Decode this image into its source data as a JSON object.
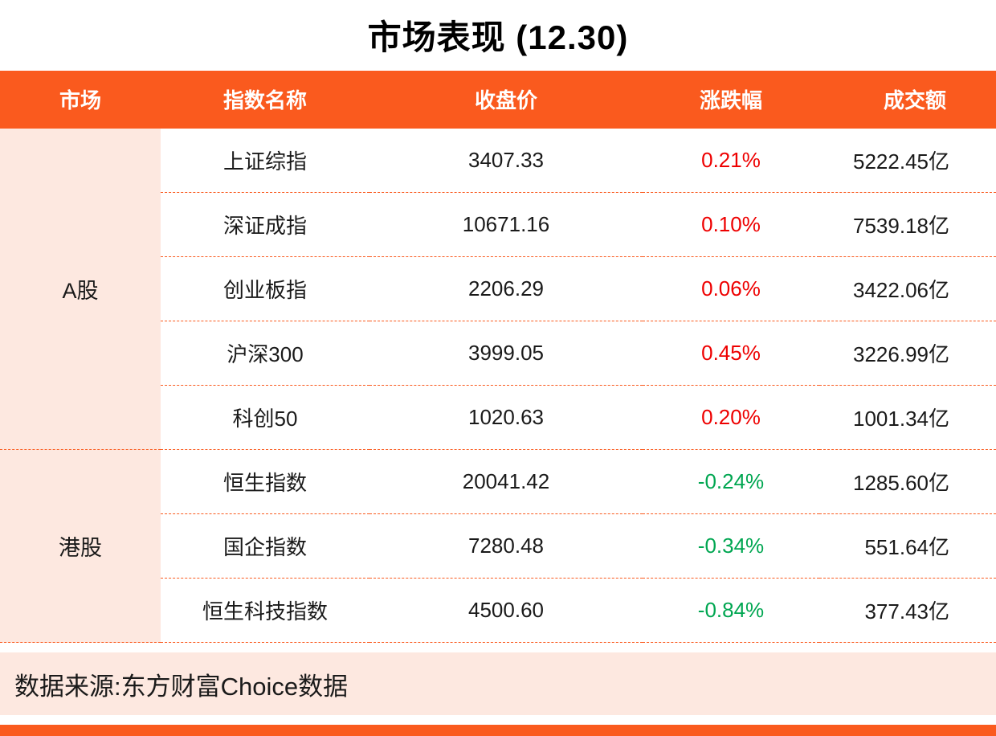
{
  "title": "市场表现 (12.30)",
  "colors": {
    "accent": "#fa5a1e",
    "header_bg": "#fa5a1e",
    "market_column_bg": "#fde8e0",
    "footer_bg": "#fde8e0",
    "positive_change": "#ee0000",
    "negative_change": "#00a651"
  },
  "table": {
    "columns": [
      "市场",
      "指数名称",
      "收盘价",
      "涨跌幅",
      "成交额"
    ],
    "groups": [
      {
        "market": "A股",
        "rows": [
          {
            "name": "上证综指",
            "close": "3407.33",
            "change": "0.21%",
            "direction": "up",
            "turnover": "5222.45亿"
          },
          {
            "name": "深证成指",
            "close": "10671.16",
            "change": "0.10%",
            "direction": "up",
            "turnover": "7539.18亿"
          },
          {
            "name": "创业板指",
            "close": "2206.29",
            "change": "0.06%",
            "direction": "up",
            "turnover": "3422.06亿"
          },
          {
            "name": "沪深300",
            "close": "3999.05",
            "change": "0.45%",
            "direction": "up",
            "turnover": "3226.99亿"
          },
          {
            "name": "科创50",
            "close": "1020.63",
            "change": "0.20%",
            "direction": "up",
            "turnover": "1001.34亿"
          }
        ]
      },
      {
        "market": "港股",
        "rows": [
          {
            "name": "恒生指数",
            "close": "20041.42",
            "change": "-0.24%",
            "direction": "down",
            "turnover": "1285.60亿"
          },
          {
            "name": "国企指数",
            "close": "7280.48",
            "change": "-0.34%",
            "direction": "down",
            "turnover": "551.64亿"
          },
          {
            "name": "恒生科技指数",
            "close": "4500.60",
            "change": "-0.84%",
            "direction": "down",
            "turnover": "377.43亿"
          }
        ]
      }
    ]
  },
  "footer": {
    "source": "数据来源:东方财富Choice数据"
  },
  "chart_data": {
    "type": "table",
    "title": "市场表现 (12.30)",
    "columns": [
      "市场",
      "指数名称",
      "收盘价",
      "涨跌幅",
      "成交额"
    ],
    "rows": [
      [
        "A股",
        "上证综指",
        3407.33,
        "0.21%",
        "5222.45亿"
      ],
      [
        "A股",
        "深证成指",
        10671.16,
        "0.10%",
        "7539.18亿"
      ],
      [
        "A股",
        "创业板指",
        2206.29,
        "0.06%",
        "3422.06亿"
      ],
      [
        "A股",
        "沪深300",
        3999.05,
        "0.45%",
        "3226.99亿"
      ],
      [
        "A股",
        "科创50",
        1020.63,
        "0.20%",
        "1001.34亿"
      ],
      [
        "港股",
        "恒生指数",
        20041.42,
        "-0.24%",
        "1285.60亿"
      ],
      [
        "港股",
        "国企指数",
        7280.48,
        "-0.34%",
        "551.64亿"
      ],
      [
        "港股",
        "恒生科技指数",
        4500.6,
        "-0.84%",
        "377.43亿"
      ]
    ],
    "notes": "涨跌幅 positive values red, negative values green; source footer: 数据来源:东方财富Choice数据"
  }
}
